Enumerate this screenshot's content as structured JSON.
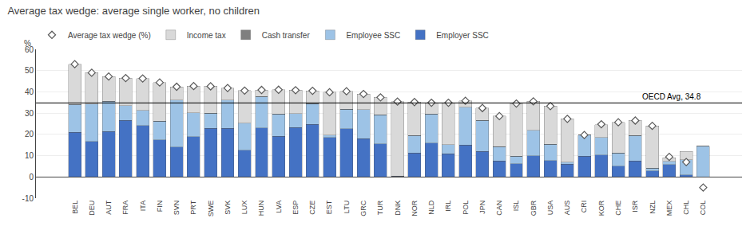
{
  "chart_data": {
    "type": "bar",
    "title": "Average tax wedge: average single worker, no children",
    "categories": [
      "BEL",
      "DEU",
      "AUT",
      "FRA",
      "ITA",
      "FIN",
      "SVN",
      "PRT",
      "SWE",
      "SVK",
      "LUX",
      "HUN",
      "LVA",
      "ESP",
      "CZE",
      "EST",
      "LTU",
      "GRC",
      "TUR",
      "DNK",
      "NOR",
      "NLD",
      "IRL",
      "POL",
      "JPN",
      "CAN",
      "ISL",
      "GBR",
      "USA",
      "AUS",
      "CRI",
      "KOR",
      "CHE",
      "ISR",
      "NZL",
      "MEX",
      "CHL",
      "COL"
    ],
    "stacked": true,
    "series": [
      {
        "name": "Employer SSC",
        "color": "#4472c4",
        "values": [
          21.0,
          16.6,
          21.4,
          26.5,
          24.1,
          17.5,
          14.1,
          19.0,
          22.8,
          22.8,
          12.6,
          23.0,
          19.1,
          23.3,
          24.8,
          18.5,
          22.7,
          17.9,
          15.5,
          0.4,
          11.3,
          16.0,
          10.8,
          15.0,
          12.0,
          7.5,
          6.2,
          10.0,
          7.7,
          6.0,
          9.7,
          10.4,
          5.1,
          7.5,
          2.8,
          5.9,
          1.0,
          0.0
        ]
      },
      {
        "name": "Employee SSC",
        "color": "#9dc3e6",
        "values": [
          13.0,
          17.7,
          14.1,
          7.0,
          7.2,
          8.8,
          22.0,
          11.2,
          7.2,
          13.4,
          12.7,
          14.9,
          10.5,
          6.4,
          9.7,
          1.2,
          9.1,
          13.7,
          13.7,
          0.0,
          8.1,
          13.6,
          4.3,
          17.8,
          14.5,
          6.8,
          3.6,
          12.0,
          7.7,
          1.0,
          10.0,
          8.2,
          6.1,
          12.0,
          1.4,
          1.5,
          7.0,
          14.4
        ]
      },
      {
        "name": "Cash transfer",
        "color": "#7f7f7f",
        "values": [
          0.0,
          0.0,
          0.0,
          0.0,
          0.0,
          0.0,
          0.0,
          0.0,
          0.0,
          0.0,
          0.0,
          0.0,
          0.0,
          0.0,
          0.0,
          0.0,
          0.0,
          0.0,
          0.0,
          0.0,
          0.0,
          0.0,
          0.0,
          0.0,
          0.0,
          0.0,
          0.0,
          0.0,
          0.0,
          0.0,
          0.0,
          0.0,
          0.0,
          0.0,
          0.0,
          0.0,
          0.0,
          0.0
        ]
      },
      {
        "name": "Income tax",
        "color": "#d9d9d9",
        "values": [
          19.0,
          14.7,
          11.7,
          13.0,
          15.0,
          18.1,
          6.3,
          12.5,
          12.6,
          5.6,
          15.3,
          3.0,
          11.4,
          11.1,
          6.0,
          20.1,
          8.5,
          7.4,
          8.2,
          35.0,
          15.8,
          5.3,
          19.8,
          3.0,
          5.9,
          14.3,
          24.7,
          13.5,
          17.9,
          20.3,
          0.0,
          6.0,
          14.5,
          7.0,
          19.8,
          1.6,
          4.0,
          0.0
        ]
      },
      {
        "name": "Average tax wedge (%)",
        "type": "scatter",
        "marker": "diamond",
        "color": "#595959",
        "values": [
          53.0,
          49.0,
          47.2,
          46.5,
          46.3,
          44.4,
          42.4,
          42.7,
          42.6,
          41.8,
          40.6,
          40.9,
          41.0,
          40.8,
          40.5,
          39.8,
          40.3,
          39.0,
          37.4,
          35.4,
          35.2,
          34.9,
          34.9,
          35.8,
          32.4,
          28.6,
          34.5,
          35.5,
          33.3,
          27.3,
          19.7,
          24.8,
          25.7,
          26.5,
          24.0,
          9.4,
          7.0,
          -5.0
        ]
      }
    ],
    "ylim": [
      -10,
      60
    ],
    "yticks": [
      -10,
      0,
      10,
      20,
      30,
      40,
      50,
      60
    ],
    "ylabel": "%",
    "grid": true,
    "legend": "top",
    "reference_lines": [
      {
        "value": 34.8,
        "label": "OECD Avg, 34.8",
        "color": "#000000"
      }
    ]
  }
}
